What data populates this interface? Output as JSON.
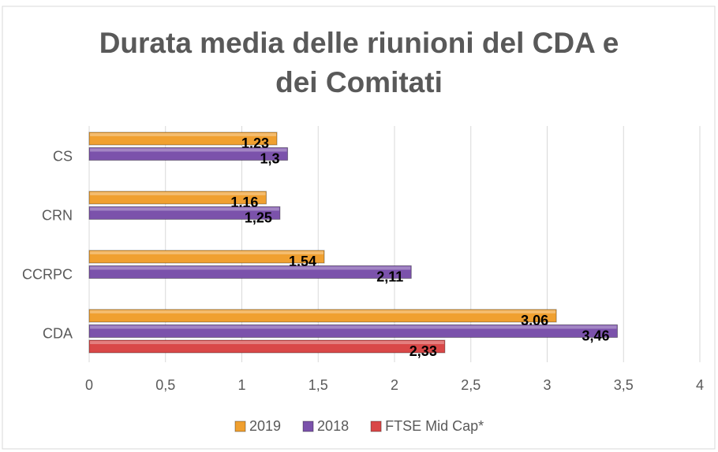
{
  "chart_data": {
    "type": "bar",
    "orientation": "horizontal",
    "title": "Durata media delle riunioni del CDA e dei Comitati",
    "categories": [
      "CS",
      "CRN",
      "CCRPC",
      "CDA"
    ],
    "series": [
      {
        "name": "2019",
        "color": "#f0a030",
        "values": [
          1.23,
          1.16,
          1.54,
          3.06
        ],
        "value_labels": [
          "1,23",
          "1,16",
          "1,54",
          "3,06"
        ]
      },
      {
        "name": "2018",
        "color": "#7b52ab",
        "values": [
          1.3,
          1.25,
          2.11,
          3.46
        ],
        "value_labels": [
          "1,3",
          "1,25",
          "2,11",
          "3,46"
        ]
      },
      {
        "name": "FTSE Mid Cap*",
        "color": "#d94848",
        "values": [
          null,
          null,
          null,
          2.33
        ],
        "value_labels": [
          null,
          null,
          null,
          "2,33"
        ]
      }
    ],
    "xlim": [
      0,
      4
    ],
    "xticks": [
      0,
      {
        "value": 0.5,
        "label": "0,5"
      },
      1,
      {
        "value": 1.5,
        "label": "1,5"
      },
      2,
      {
        "value": 2.5,
        "label": "2,5"
      },
      3,
      {
        "value": 3.5,
        "label": "3,5"
      },
      4
    ],
    "grid": true,
    "legend": "bottom"
  }
}
